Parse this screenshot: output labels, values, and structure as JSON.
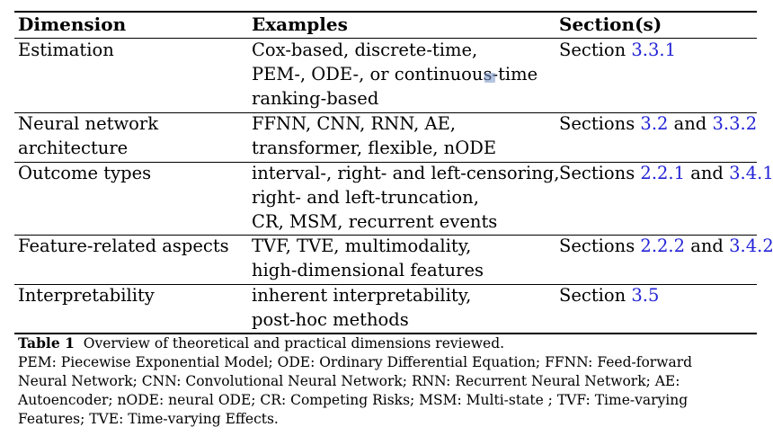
{
  "table": {
    "headers": {
      "dimension": "Dimension",
      "examples": "Examples",
      "sections": "Section(s)"
    },
    "rows": [
      {
        "dimension_lines": [
          "Estimation"
        ],
        "example_lines": [
          "Cox-based, discrete-time,",
          "PEM-, ODE-, or continuous-time",
          "ranking-based"
        ],
        "sections": {
          "prefix": "Section ",
          "ref1": "3.3.1",
          "joiner": "",
          "ref2": ""
        }
      },
      {
        "dimension_lines": [
          "Neural network",
          "architecture"
        ],
        "example_lines": [
          "FFNN, CNN, RNN, AE,",
          "transformer, flexible, nODE"
        ],
        "sections": {
          "prefix": "Sections ",
          "ref1": "3.2",
          "joiner": " and ",
          "ref2": "3.3.2"
        }
      },
      {
        "dimension_lines": [
          "Outcome types"
        ],
        "example_lines": [
          "interval-, right- and left-censoring,",
          "right- and left-truncation,",
          "CR, MSM, recurrent events"
        ],
        "sections": {
          "prefix": "Sections ",
          "ref1": "2.2.1",
          "joiner": " and ",
          "ref2": "3.4.1"
        }
      },
      {
        "dimension_lines": [
          "Feature-related aspects"
        ],
        "example_lines": [
          "TVF, TVE, multimodality,",
          "high-dimensional features"
        ],
        "sections": {
          "prefix": "Sections ",
          "ref1": "2.2.2",
          "joiner": " and ",
          "ref2": "3.4.2"
        }
      },
      {
        "dimension_lines": [
          "Interpretability"
        ],
        "example_lines": [
          "inherent interpretability,",
          "post-hoc methods"
        ],
        "sections": {
          "prefix": "Section ",
          "ref1": "3.5",
          "joiner": "",
          "ref2": ""
        }
      }
    ]
  },
  "caption": {
    "label": "Table 1",
    "title": "Overview of theoretical and practical dimensions reviewed.",
    "lines": [
      "PEM: Piecewise Exponential Model; ODE: Ordinary Differential Equation; FFNN: Feed-forward",
      "Neural Network; CNN: Convolutional Neural Network; RNN: Recurrent Neural Network; AE:",
      "Autoencoder; nODE: neural ODE; CR: Competing Risks; MSM: Multi-state ; TVF: Time-varying",
      "Features; TVE: Time-varying Effects."
    ]
  },
  "colors": {
    "link": "#2323d6",
    "text": "#000000",
    "background": "#ffffff"
  }
}
